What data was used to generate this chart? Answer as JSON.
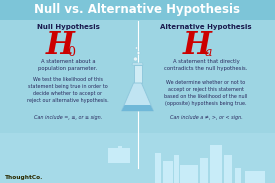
{
  "title": "Null vs. Alternative Hypothesis",
  "title_color": "#ffffff",
  "title_fontsize": 8.5,
  "bg_color": "#9dd5e3",
  "title_bar_color": "#7dc5d8",
  "left_header": "Null Hypothesis",
  "right_header": "Alternative Hypothesis",
  "left_symbol": "H",
  "left_sub": "0",
  "right_symbol": "H",
  "right_sub": "a",
  "symbol_color": "#cc0000",
  "header_color": "#1a1a4e",
  "body_color": "#2a2a5e",
  "left_text1": "A statement about a\npopulation parameter.",
  "left_text2": "We test the likelihood of this\nstatement being true in order to\ndecide whether to accept or\nreject our alternative hypothesis.",
  "left_text3": "Can include =, ≤, or ≥ sign.",
  "right_text1": "A statement that directly\ncontradicts the null hypothesis.",
  "right_text2": "We determine whether or not to\naccept or reject this statement\nbased on the likelihood of the null\n(opposite) hypothesis being true.",
  "right_text3": "Can include a ≠, >, or < sign.",
  "watermark": "ThoughtCo.",
  "watermark_color": "#2a2a00",
  "divider_color": "#ffffff"
}
